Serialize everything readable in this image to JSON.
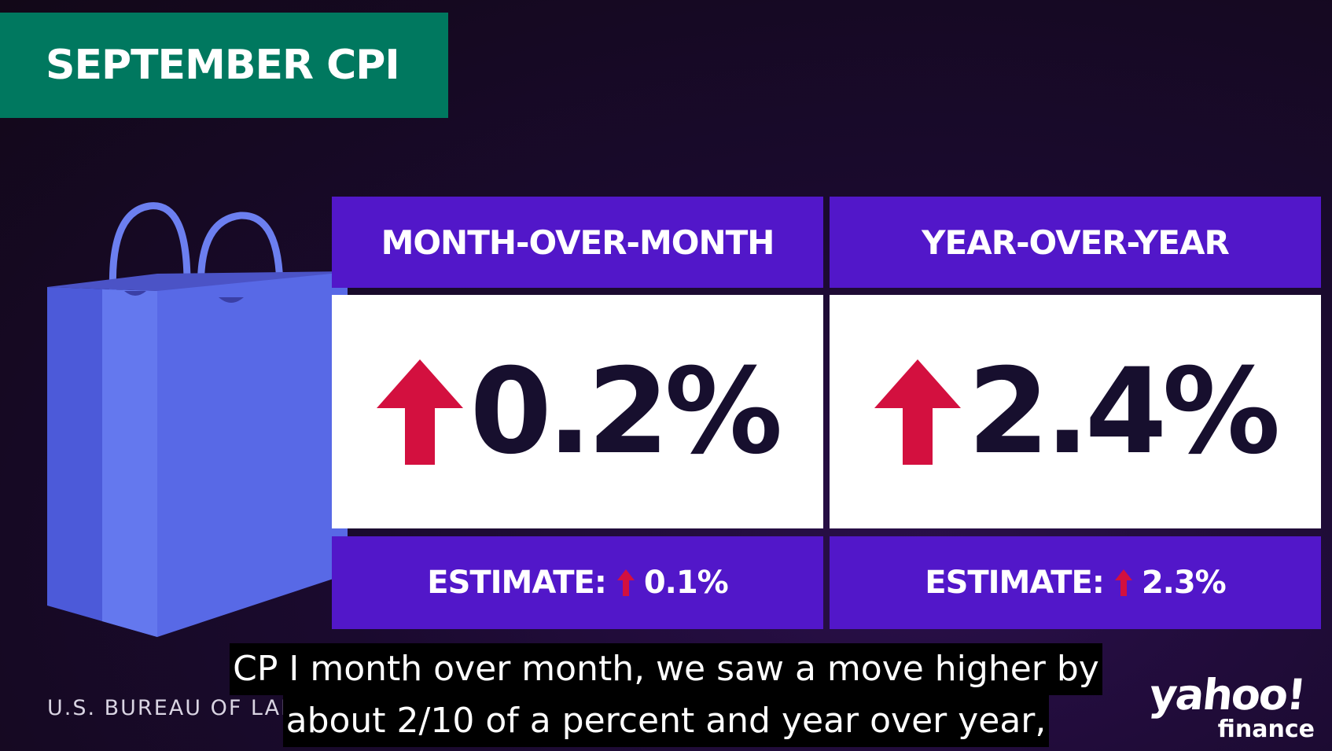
{
  "title": "SEPTEMBER CPI",
  "icons": {
    "bag": "shopping-bag-icon",
    "up_arrow": "arrow-up-icon"
  },
  "colors": {
    "title_banner": "#00785f",
    "card_accent": "#5217c9",
    "arrow": "#d3103f",
    "value_text": "#170f2e",
    "bag": "#5b6ae8"
  },
  "cards": [
    {
      "header": "MONTH-OVER-MONTH",
      "value": "0.2%",
      "estimate_label": "ESTIMATE:",
      "estimate_value": "0.1%"
    },
    {
      "header": "YEAR-OVER-YEAR",
      "value": "2.4%",
      "estimate_label": "ESTIMATE:",
      "estimate_value": "2.3%"
    }
  ],
  "source": "U.S. BUREAU OF LAB",
  "logo": {
    "main": "yahoo!",
    "sub": "finance"
  },
  "subtitles": [
    "CP I month over month, we saw a move higher by",
    "about 2/10 of a percent and year over year,"
  ]
}
